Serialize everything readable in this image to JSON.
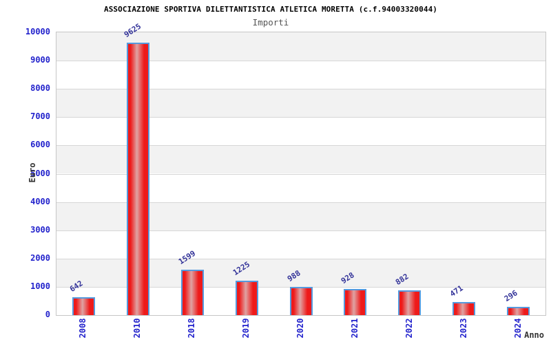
{
  "chart_data": {
    "type": "bar",
    "title": "ASSOCIAZIONE SPORTIVA DILETTANTISTICA ATLETICA MORETTA (c.f.94003320044)",
    "subtitle": "Importi",
    "xlabel": "Anno",
    "ylabel": "Euro",
    "categories": [
      "2008",
      "2010",
      "2018",
      "2019",
      "2020",
      "2021",
      "2022",
      "2023",
      "2024"
    ],
    "values": [
      642,
      9625,
      1599,
      1225,
      988,
      928,
      882,
      471,
      296
    ],
    "ylim": [
      0,
      10000
    ],
    "ytick_step": 1000,
    "grid": true,
    "legend": "none",
    "band_colors": [
      "#f2f2f2",
      "#ffffff"
    ],
    "colors": {
      "bar_fill": "#ee1a1a",
      "bar_highlight": "#dfa3a3",
      "bar_border": "#5599dd",
      "tick_label": "#2222cc",
      "value_label": "#333399",
      "axis_title": "#333333",
      "title": "#000000",
      "subtitle": "#555555",
      "gridline": "#d6d6d6",
      "plot_border": "#c6c6c6"
    }
  }
}
